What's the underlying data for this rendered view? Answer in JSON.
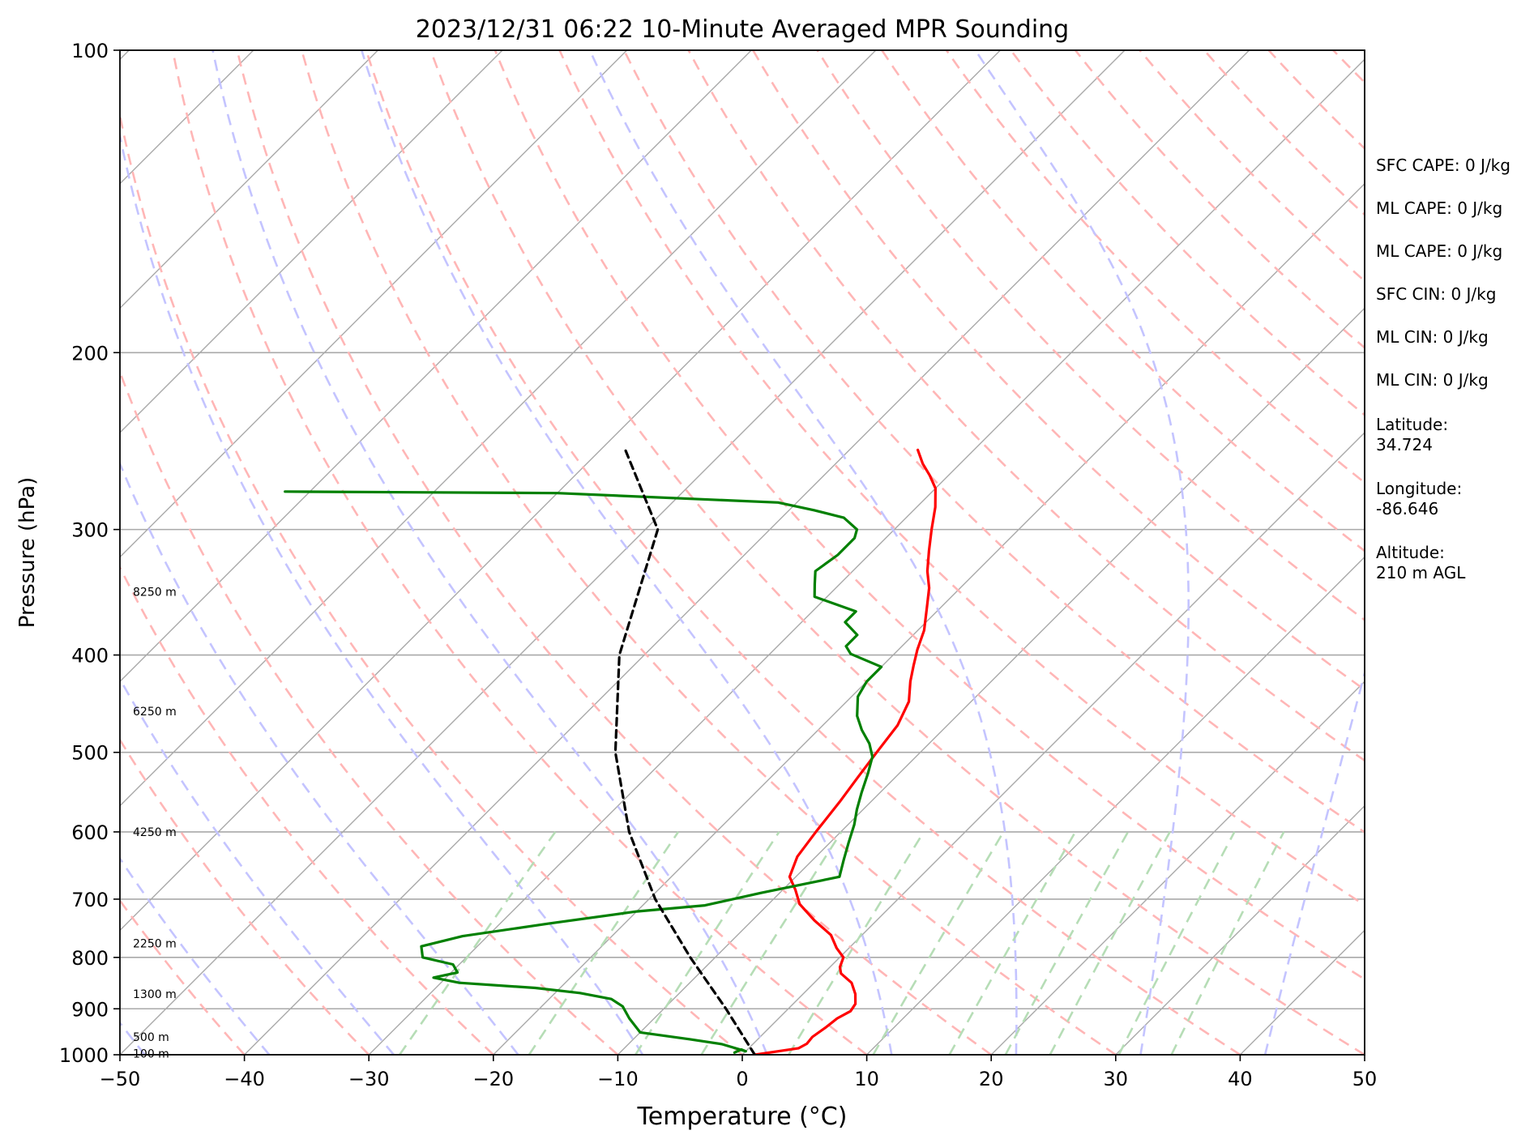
{
  "chart_data": {
    "type": "line",
    "title": "2023/12/31 06:22 10-Minute Averaged MPR Sounding",
    "xlabel": "Temperature (°C)",
    "ylabel": "Pressure (hPa)",
    "xlim": [
      -50,
      50
    ],
    "ylim": [
      1000,
      100
    ],
    "y_scale": "log",
    "skew_degrees": 45,
    "x_ticks": [
      -50,
      -40,
      -30,
      -20,
      -10,
      0,
      10,
      20,
      30,
      40,
      50
    ],
    "x_tick_labels": [
      "−50",
      "−40",
      "−30",
      "−20",
      "−10",
      "0",
      "10",
      "20",
      "30",
      "40",
      "50"
    ],
    "y_ticks": [
      1000,
      900,
      800,
      700,
      600,
      500,
      400,
      300,
      200,
      100
    ],
    "y_tick_labels": [
      "1000",
      "900",
      "800",
      "700",
      "600",
      "500",
      "400",
      "300",
      "200",
      "100"
    ],
    "grid": true,
    "series": [
      {
        "color": "#ff0000",
        "points": [
          [
            1.0,
            1000
          ],
          [
            4.0,
            985
          ],
          [
            4.3,
            975
          ],
          [
            4.2,
            960
          ],
          [
            4.5,
            940
          ],
          [
            4.7,
            920
          ],
          [
            5.2,
            905
          ],
          [
            5.0,
            890
          ],
          [
            4.2,
            870
          ],
          [
            3.0,
            848
          ],
          [
            1.4,
            830
          ],
          [
            0.8,
            818
          ],
          [
            0.3,
            800
          ],
          [
            -1.0,
            783
          ],
          [
            -2.5,
            760
          ],
          [
            -5.0,
            735
          ],
          [
            -7.5,
            708
          ],
          [
            -9.0,
            685
          ],
          [
            -10.5,
            665
          ],
          [
            -11.5,
            635
          ],
          [
            -12.0,
            600
          ],
          [
            -12.5,
            560
          ],
          [
            -13.0,
            530
          ],
          [
            -13.5,
            500
          ],
          [
            -14.0,
            470
          ],
          [
            -15.0,
            445
          ],
          [
            -16.5,
            425
          ],
          [
            -17.5,
            410
          ],
          [
            -18.5,
            395
          ],
          [
            -19.5,
            378
          ],
          [
            -21.0,
            360
          ],
          [
            -22.5,
            343
          ],
          [
            -24.0,
            330
          ],
          [
            -25.5,
            315
          ],
          [
            -27.0,
            300
          ],
          [
            -28.5,
            285
          ],
          [
            -30.0,
            273
          ],
          [
            -31.5,
            265
          ],
          [
            -33.0,
            258
          ],
          [
            -34.5,
            250
          ]
        ]
      },
      {
        "color": "#008000",
        "points": [
          [
            -0.8,
            995
          ],
          [
            -0.5,
            988
          ],
          [
            0.0,
            992
          ],
          [
            -2.5,
            976
          ],
          [
            -5.5,
            965
          ],
          [
            -10.0,
            950
          ],
          [
            -12.0,
            920
          ],
          [
            -13.5,
            895
          ],
          [
            -15.0,
            880
          ],
          [
            -18.0,
            868
          ],
          [
            -22.0,
            858
          ],
          [
            -28.5,
            848
          ],
          [
            -31.0,
            838
          ],
          [
            -29.5,
            828
          ],
          [
            -30.5,
            813
          ],
          [
            -33.5,
            800
          ],
          [
            -34.5,
            780
          ],
          [
            -32.0,
            762
          ],
          [
            -26.0,
            740
          ],
          [
            -20.0,
            720
          ],
          [
            -15.0,
            710
          ],
          [
            -11.5,
            690
          ],
          [
            -8.5,
            675
          ],
          [
            -6.5,
            665
          ],
          [
            -7.5,
            640
          ],
          [
            -8.5,
            615
          ],
          [
            -9.5,
            590
          ],
          [
            -10.5,
            570
          ],
          [
            -11.5,
            548
          ],
          [
            -12.5,
            525
          ],
          [
            -13.5,
            505
          ],
          [
            -14.8,
            490
          ],
          [
            -16.5,
            475
          ],
          [
            -18.0,
            460
          ],
          [
            -19.5,
            440
          ],
          [
            -20.0,
            425
          ],
          [
            -20.0,
            411
          ],
          [
            -23.5,
            399
          ],
          [
            -24.5,
            392
          ],
          [
            -24.5,
            382
          ],
          [
            -26.5,
            371
          ],
          [
            -26.5,
            362
          ],
          [
            -31.0,
            350
          ],
          [
            -32.0,
            340
          ],
          [
            -33.0,
            330
          ],
          [
            -32.5,
            318
          ],
          [
            -32.5,
            306
          ],
          [
            -33.0,
            300
          ],
          [
            -35.0,
            292
          ],
          [
            -38.0,
            287
          ],
          [
            -41.5,
            282
          ],
          [
            -60.0,
            276
          ],
          [
            -82.0,
            275
          ]
        ]
      },
      {
        "color": "#000000",
        "dashed": true,
        "points": [
          [
            1.0,
            1000
          ],
          [
            -5.0,
            900
          ],
          [
            -12.0,
            800
          ],
          [
            -19.5,
            700
          ],
          [
            -27.0,
            600
          ],
          [
            -34.5,
            500
          ],
          [
            -42.0,
            400
          ],
          [
            -49.0,
            300
          ],
          [
            -58.0,
            250
          ]
        ]
      }
    ],
    "background_lines": {
      "isotherm_color": "#a9a9a9",
      "dry_adiabat_color": "#ffb6b6",
      "moist_adiabat_color": "#c4c4ff",
      "mixing_ratio_color": "#b6ddb6",
      "moist_adiabat_surface_temps": [
        -48,
        -38,
        -28,
        -18,
        -8,
        2,
        12,
        22,
        32,
        42,
        52,
        62
      ]
    },
    "height_annotations": [
      "8250 m",
      "6250 m",
      "4250 m",
      "2250 m",
      "1300 m",
      "500 m",
      "100 m"
    ],
    "height_annotation_pressures": [
      346,
      455,
      600,
      775,
      870,
      960,
      997
    ],
    "side_text": [
      "SFC CAPE: 0 J/kg",
      "ML CAPE: 0 J/kg",
      "ML CAPE: 0 J/kg",
      "SFC CIN: 0 J/kg",
      "ML CIN: 0 J/kg",
      "ML CIN: 0 J/kg",
      "Latitude:",
      "34.724",
      "Longitude:",
      "-86.646",
      "Altitude:",
      "210 m AGL"
    ]
  }
}
